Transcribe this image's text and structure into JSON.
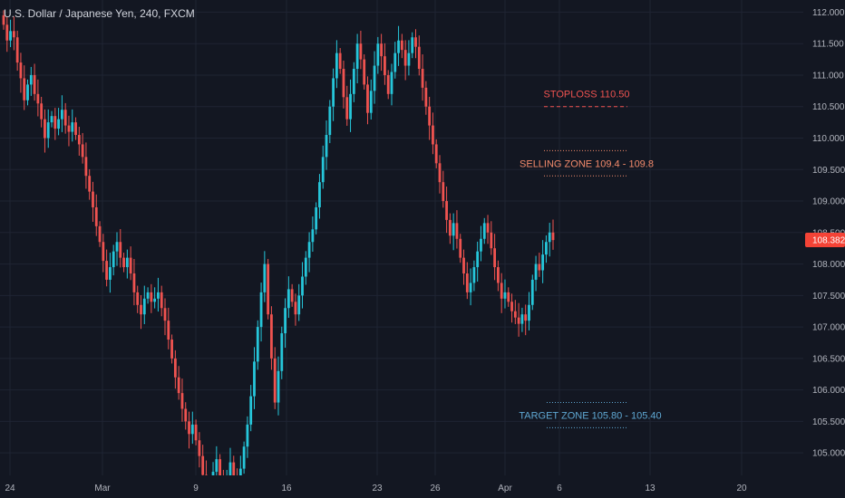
{
  "header": {
    "title": "U.S. Dollar / Japanese Yen, 240, FXCM"
  },
  "colors": {
    "background": "#131722",
    "up": "#26c6da",
    "down": "#ef5350",
    "grid": "#1f2433",
    "axis_text": "#b2b5be",
    "last_price": "#f44336"
  },
  "chart_data": {
    "type": "candlestick",
    "title": "U.S. Dollar / Japanese Yen, 240, FXCM",
    "ylim": [
      104.6,
      112.2
    ],
    "y_ticks": [
      "112.000",
      "111.500",
      "111.000",
      "110.500",
      "110.000",
      "109.500",
      "109.000",
      "108.500",
      "108.000",
      "107.500",
      "107.000",
      "106.500",
      "106.000",
      "105.500",
      "105.000"
    ],
    "x_ticks": [
      "24",
      "Mar",
      "9",
      "16",
      "23",
      "26",
      "Apr",
      "6",
      "13",
      "20"
    ],
    "last_price": "108.382",
    "closes": [
      111.8,
      111.55,
      111.7,
      111.6,
      111.2,
      110.95,
      110.6,
      110.85,
      111.0,
      110.7,
      110.55,
      110.3,
      110.0,
      110.25,
      110.35,
      110.15,
      110.3,
      110.45,
      110.2,
      110.1,
      110.25,
      110.05,
      109.9,
      109.7,
      109.4,
      109.15,
      108.9,
      108.6,
      108.35,
      108.05,
      107.75,
      107.95,
      108.2,
      108.35,
      108.1,
      107.95,
      108.1,
      107.85,
      107.55,
      107.35,
      107.2,
      107.45,
      107.55,
      107.4,
      107.45,
      107.55,
      107.3,
      107.1,
      106.8,
      106.5,
      106.2,
      105.95,
      105.7,
      105.5,
      105.3,
      105.45,
      105.2,
      104.95,
      104.65,
      104.5,
      104.4,
      104.7,
      104.9,
      104.6,
      104.3,
      104.55,
      104.85,
      104.6,
      104.4,
      104.75,
      105.1,
      105.45,
      105.9,
      106.45,
      107.0,
      107.55,
      108.0,
      107.2,
      106.5,
      105.8,
      106.3,
      106.9,
      107.3,
      107.6,
      107.4,
      107.2,
      107.5,
      107.8,
      108.1,
      108.35,
      108.55,
      108.9,
      109.3,
      109.7,
      110.05,
      110.5,
      110.95,
      111.35,
      111.1,
      110.65,
      110.3,
      110.7,
      111.1,
      111.5,
      111.25,
      110.85,
      110.4,
      110.75,
      111.15,
      111.5,
      111.3,
      111.0,
      110.7,
      111.05,
      111.35,
      111.55,
      111.4,
      111.15,
      111.35,
      111.6,
      111.45,
      111.1,
      110.8,
      110.5,
      110.2,
      109.9,
      109.6,
      109.3,
      109.0,
      108.7,
      108.45,
      108.65,
      108.4,
      108.1,
      107.85,
      107.55,
      107.7,
      107.95,
      108.2,
      108.4,
      108.65,
      108.5,
      108.25,
      107.95,
      107.7,
      107.45,
      107.55,
      107.4,
      107.25,
      107.15,
      107.05,
      107.2,
      107.1,
      107.35,
      107.75,
      108.0,
      107.9,
      108.15,
      108.35,
      108.5,
      108.38
    ]
  },
  "annotations": {
    "stoploss": {
      "label": "STOPLOSS 110.50",
      "price": 110.5,
      "color": "#ef5350"
    },
    "selling": {
      "label": "SELLING ZONE 109.4 - 109.8",
      "low": 109.4,
      "high": 109.8,
      "color": "#f48b6c"
    },
    "target": {
      "label": "TARGET ZONE 105.80 - 105.40",
      "low": 105.4,
      "high": 105.8,
      "color": "#5fa8d3"
    }
  }
}
